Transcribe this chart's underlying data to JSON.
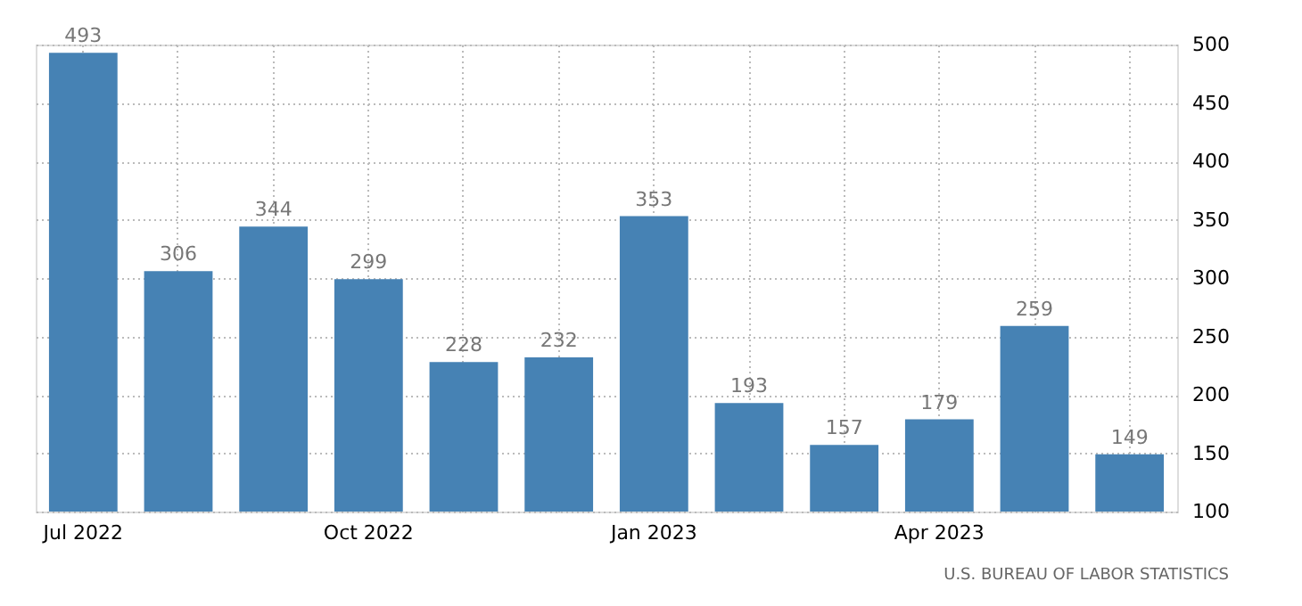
{
  "chart_data": {
    "type": "bar",
    "categories": [
      "Jul 2022",
      null,
      null,
      "Oct 2022",
      null,
      null,
      "Jan 2023",
      null,
      null,
      "Apr 2023",
      null,
      null
    ],
    "values": [
      493,
      306,
      344,
      299,
      228,
      232,
      353,
      193,
      157,
      179,
      259,
      149
    ],
    "color": "#4682b4",
    "ylim": [
      100,
      500
    ],
    "yticks": [
      100,
      150,
      200,
      250,
      300,
      350,
      400,
      450,
      500
    ],
    "grid": true,
    "data_labels": true,
    "annotations": [
      "U.S. BUREAU OF LABOR STATISTICS"
    ]
  }
}
